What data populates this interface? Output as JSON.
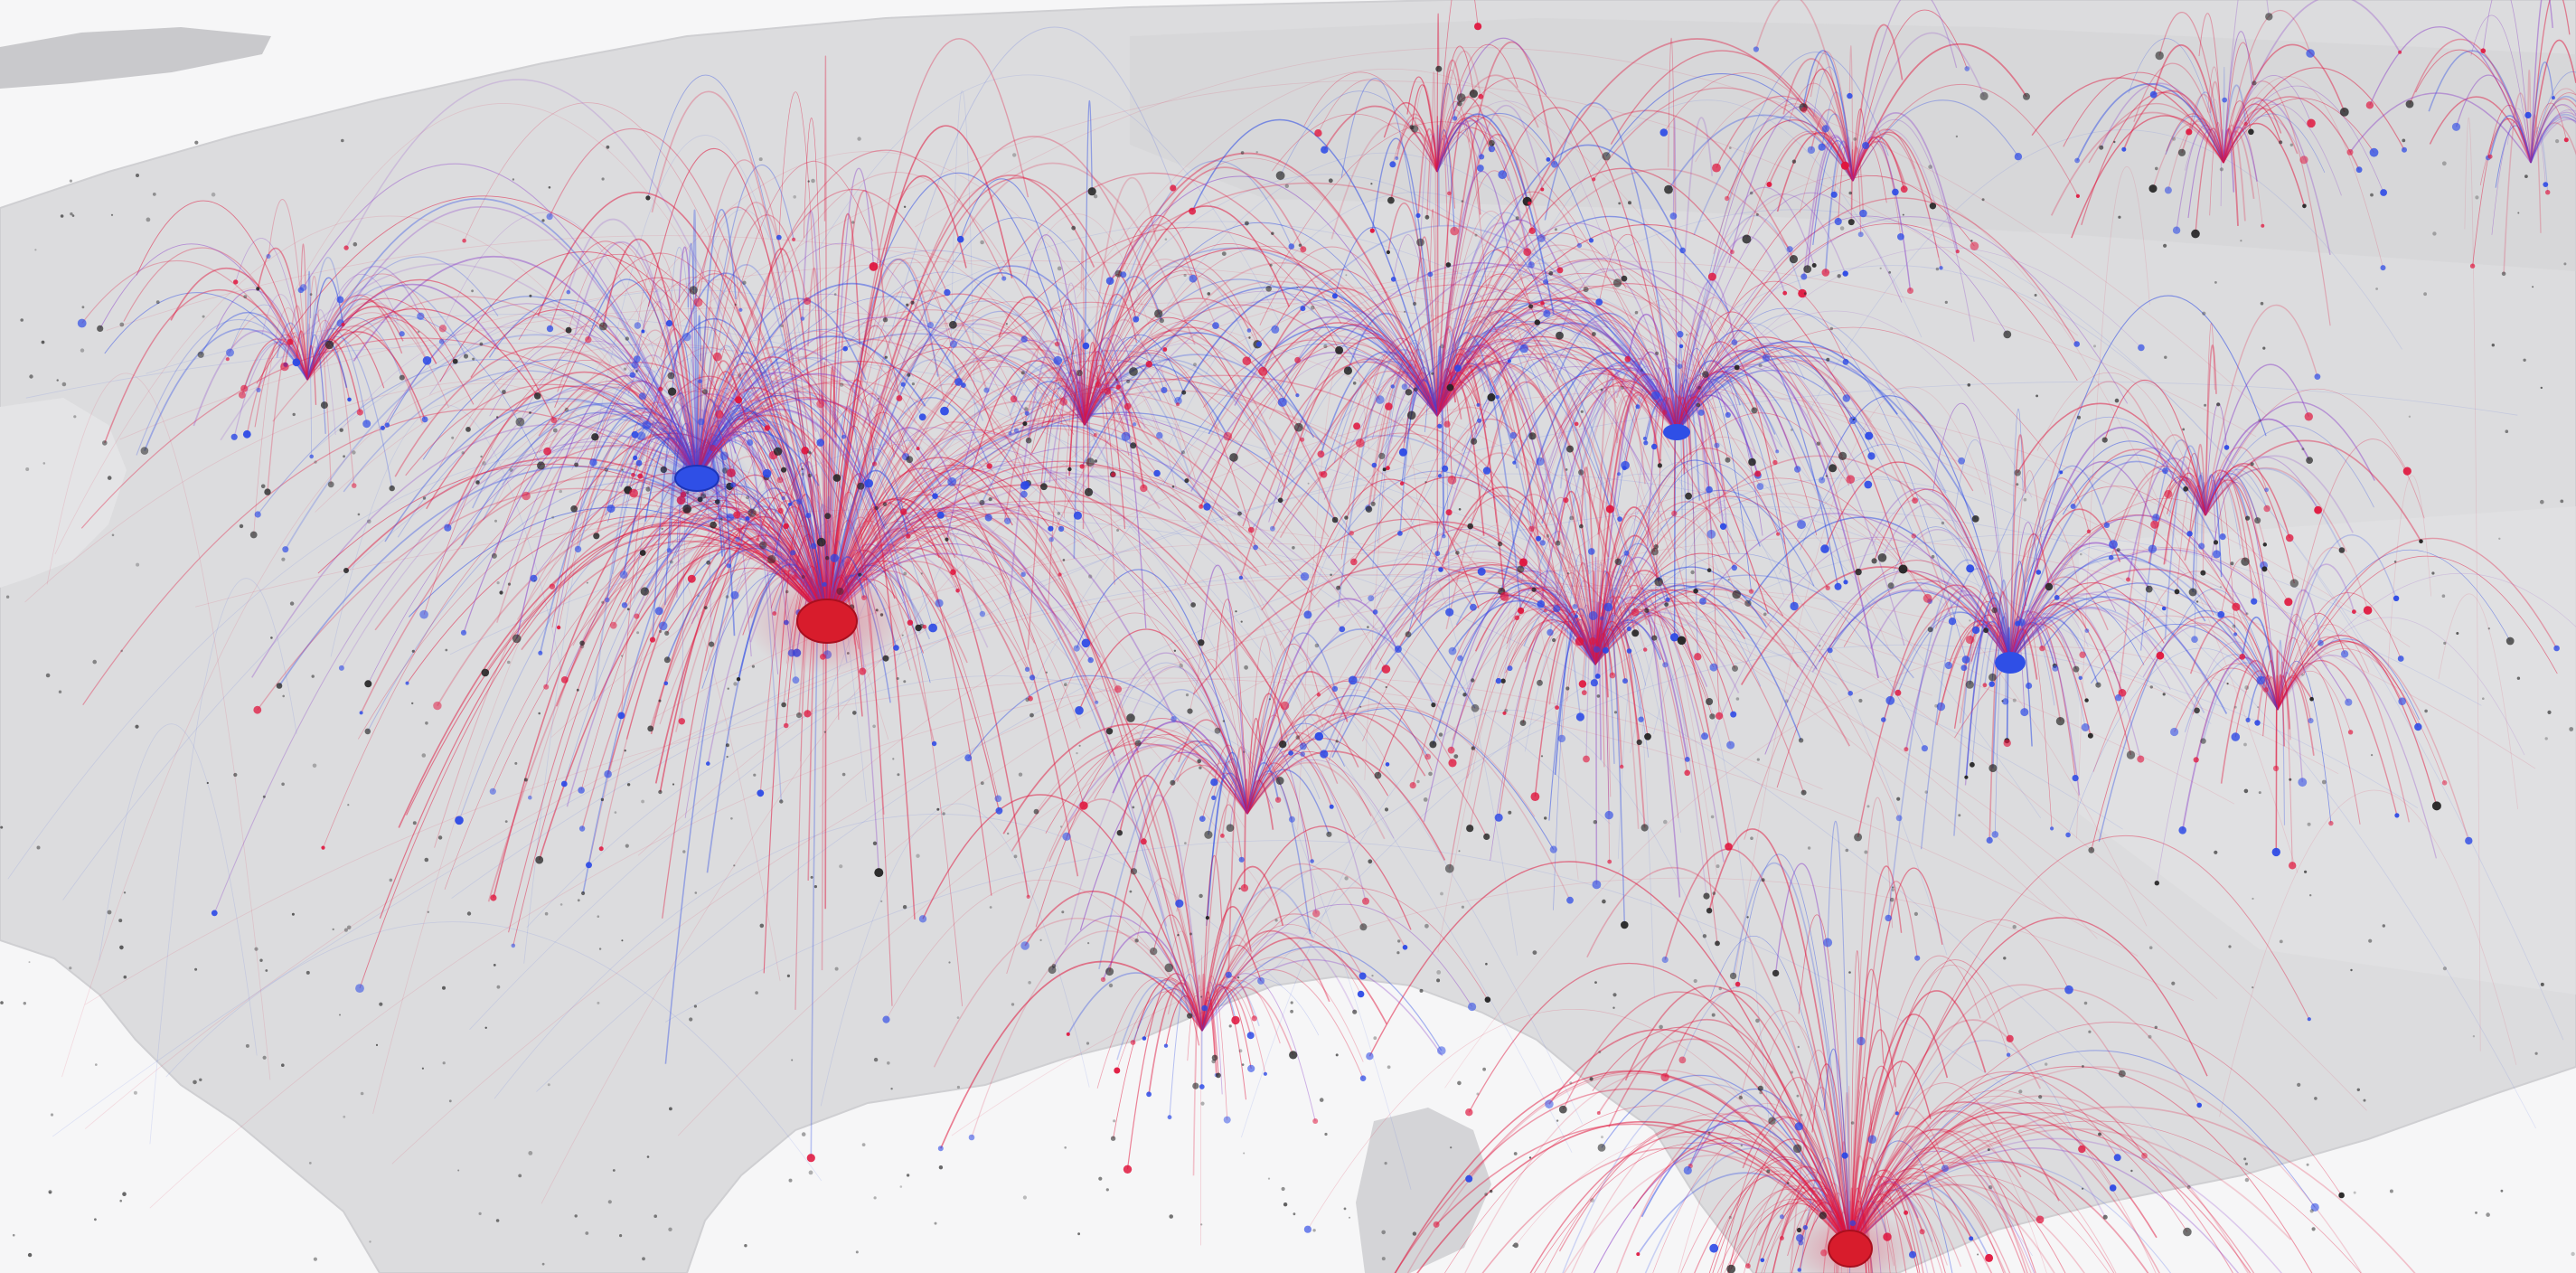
{
  "map": {
    "view": "3d-perspective",
    "colors": {
      "sea": "#f6f6f7",
      "land": "#dcdcde",
      "land_edge": "#cfcfd2",
      "origin_arc": "#e0143c",
      "destination_arc": "#2a48e6",
      "mixed_arc": "#8a3cc8",
      "minor_node": "#222222"
    },
    "legend": "none",
    "labels": "none",
    "hubs": [
      {
        "role": "major-origin",
        "color": "#e0143c",
        "size": "large"
      },
      {
        "role": "major-destination",
        "color": "#2a48e6",
        "size": "medium"
      },
      {
        "role": "secondary-destination",
        "color": "#2a48e6",
        "size": "small"
      },
      {
        "role": "secondary-destination",
        "color": "#2a48e6",
        "size": "small"
      },
      {
        "role": "coastal-origin",
        "color": "#e0143c",
        "size": "medium"
      }
    ]
  }
}
